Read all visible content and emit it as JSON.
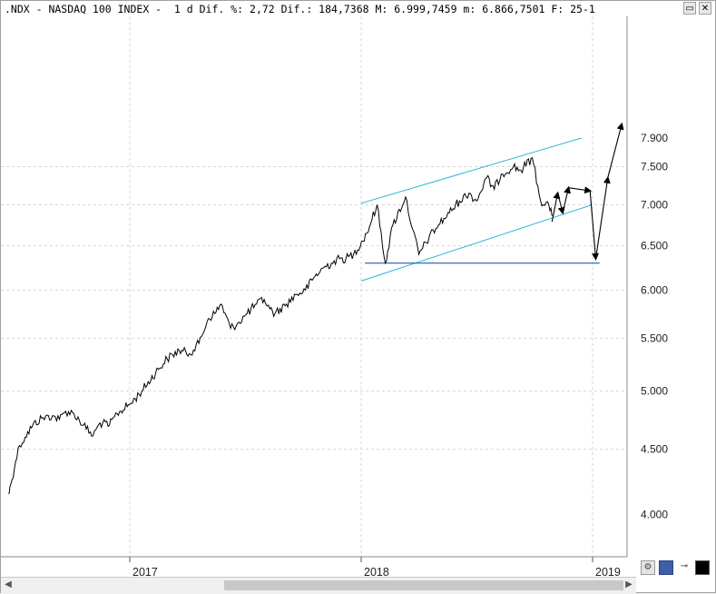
{
  "header": {
    "text": ".NDX - NASDAQ 100 INDEX -  1 d Dif. %: 2,72 Dif.: 184,7368 M: 6.999,7459 m: 6.866,7501 F: 25-1"
  },
  "window_buttons": {
    "restore_label": "▭",
    "close_label": "✕"
  },
  "colors": {
    "price_line": "#000000",
    "channel_line": "#29b6d8",
    "support_line": "#1c5fa8",
    "projection_arrow": "#000000",
    "grid": "#d6d6d6",
    "background": "#ffffff"
  },
  "toolbar_icons": [
    "settings-icon",
    "save-icon",
    "pin-icon",
    "color-swatch-icon"
  ],
  "chart_data": {
    "type": "line",
    "title": ".NDX - NASDAQ 100 INDEX",
    "timeframe": "1 d",
    "header_stats": {
      "dif_pct": "2,72",
      "dif": "184,7368",
      "max": "6.999,7459",
      "min": "6.866,7501",
      "date": "25-1"
    },
    "y_scale": "log",
    "ylim": [
      3950,
      7900
    ],
    "xlim": [
      "2016-06-20",
      "2019-02-20"
    ],
    "grid": true,
    "y_ticks": [
      {
        "value": 4500,
        "label": "4.500"
      },
      {
        "value": 5000,
        "label": "5.000"
      },
      {
        "value": 5500,
        "label": "5.500"
      },
      {
        "value": 6000,
        "label": "6.000"
      },
      {
        "value": 6500,
        "label": "6.500"
      },
      {
        "value": 7000,
        "label": "7.000"
      },
      {
        "value": 7500,
        "label": "7.500"
      }
    ],
    "y_ticks_partial": [
      {
        "value": 4000,
        "label": "4.000"
      },
      {
        "value": 7900,
        "label": "7.900"
      }
    ],
    "x_ticks": [
      {
        "date": "2017-01-01",
        "label": "2017"
      },
      {
        "date": "2018-01-01",
        "label": "2018"
      },
      {
        "date": "2019-01-01",
        "label": "2019"
      }
    ],
    "series": [
      {
        "x": [
          "2016-06-24",
          "2016-06-27",
          "2016-07-05",
          "2016-07-11",
          "2016-07-20",
          "2016-08-01",
          "2016-08-15",
          "2016-09-01",
          "2016-09-12",
          "2016-09-22",
          "2016-10-05",
          "2016-10-20",
          "2016-11-04",
          "2016-11-15",
          "2016-11-30",
          "2016-12-12",
          "2017-01-03",
          "2017-01-20",
          "2017-02-15",
          "2017-03-01",
          "2017-03-20",
          "2017-04-05",
          "2017-04-20",
          "2017-05-05",
          "2017-05-15",
          "2017-05-25",
          "2017-06-09",
          "2017-06-20",
          "2017-07-05",
          "2017-07-20",
          "2017-08-01",
          "2017-08-10",
          "2017-08-18",
          "2017-09-05",
          "2017-09-20",
          "2017-10-05",
          "2017-10-20",
          "2017-11-03",
          "2017-11-15",
          "2017-11-28",
          "2017-12-08",
          "2017-12-20",
          "2018-01-10",
          "2018-01-26",
          "2018-02-08",
          "2018-02-20",
          "2018-03-12",
          "2018-03-23",
          "2018-04-02",
          "2018-04-18",
          "2018-05-03",
          "2018-05-20",
          "2018-06-05",
          "2018-06-20",
          "2018-07-02",
          "2018-07-18",
          "2018-07-30",
          "2018-08-10",
          "2018-08-29",
          "2018-09-10",
          "2018-09-28",
          "2018-10-11",
          "2018-10-24",
          "2018-10-29"
        ],
        "values": [
          4150,
          4220,
          4400,
          4530,
          4600,
          4700,
          4760,
          4780,
          4750,
          4820,
          4800,
          4700,
          4610,
          4720,
          4700,
          4800,
          4890,
          5000,
          5200,
          5300,
          5380,
          5350,
          5450,
          5700,
          5750,
          5850,
          5600,
          5650,
          5750,
          5850,
          5900,
          5800,
          5750,
          5850,
          5950,
          6000,
          6150,
          6250,
          6300,
          6350,
          6350,
          6400,
          6650,
          7000,
          6300,
          6750,
          7100,
          6700,
          6400,
          6600,
          6750,
          6900,
          7050,
          7150,
          7050,
          7350,
          7200,
          7400,
          7500,
          7450,
          7620,
          7050,
          7000,
          6860
        ],
        "name": ""
      }
    ],
    "annotations": {
      "channel_upper": [
        [
          "2018-01-01",
          7020
        ],
        [
          "2018-12-15",
          7900
        ]
      ],
      "channel_lower": [
        [
          "2018-01-01",
          6100
        ],
        [
          "2018-12-31",
          7000
        ]
      ],
      "support_horizontal": {
        "value": 6300,
        "from": "2018-01-07",
        "to": "2019-01-12"
      },
      "projection_path": [
        [
          "2018-10-29",
          6790
        ],
        [
          "2018-11-07",
          7150
        ],
        [
          "2018-11-15",
          6900
        ],
        [
          "2018-11-24",
          7220
        ],
        [
          "2018-12-28",
          7180
        ],
        [
          "2019-01-06",
          6350
        ],
        [
          "2019-01-25",
          7350
        ],
        [
          "2019-02-16",
          8100
        ]
      ]
    }
  }
}
